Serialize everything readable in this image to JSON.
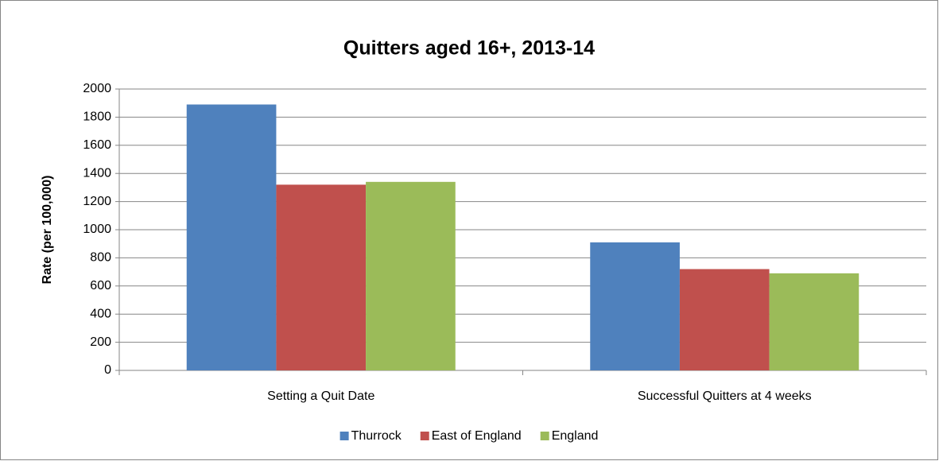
{
  "chart_data": {
    "type": "bar",
    "title": "Quitters aged 16+, 2013-14",
    "y_label": "Rate (per 100,000)",
    "categories": [
      "Setting a Quit Date",
      "Successful Quitters at 4 weeks"
    ],
    "series": [
      {
        "name": "Thurrock",
        "color": "#4f81bd",
        "values": [
          1890,
          910
        ]
      },
      {
        "name": "East of England",
        "color": "#c0504d",
        "values": [
          1320,
          720
        ]
      },
      {
        "name": "England",
        "color": "#9bbb59",
        "values": [
          1340,
          690
        ]
      }
    ],
    "ylim": [
      0,
      2000
    ],
    "yticks": [
      0,
      200,
      400,
      600,
      800,
      1000,
      1200,
      1400,
      1600,
      1800,
      2000
    ],
    "grid": true,
    "legend": "bottom"
  }
}
